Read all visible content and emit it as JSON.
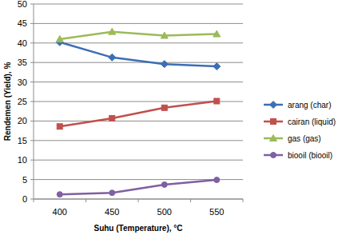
{
  "chart_data": {
    "type": "line",
    "x_label": "Suhu (Temperature), °C",
    "y_label": "Rendemen (Yield), %",
    "categories": [
      "400",
      "450",
      "500",
      "550"
    ],
    "series": [
      {
        "name": "arang (char)",
        "color": "#3c6eb4",
        "marker": "diamond",
        "values": [
          40.2,
          36.3,
          34.6,
          34.0
        ]
      },
      {
        "name": "cairan (liquid)",
        "color": "#c0504d",
        "marker": "square",
        "values": [
          18.6,
          20.7,
          23.4,
          25.1
        ]
      },
      {
        "name": "gas (gas)",
        "color": "#9bbb59",
        "marker": "triangle",
        "values": [
          41.0,
          42.9,
          41.9,
          42.3
        ]
      },
      {
        "name": "biooil (biooil)",
        "color": "#7f5fa0",
        "marker": "circle",
        "values": [
          1.2,
          1.6,
          3.7,
          4.9
        ]
      }
    ],
    "ylim": [
      0,
      50
    ],
    "yticks": [
      0,
      5,
      10,
      15,
      20,
      25,
      30,
      35,
      40,
      45,
      50
    ],
    "grid": true,
    "legend": "right"
  }
}
